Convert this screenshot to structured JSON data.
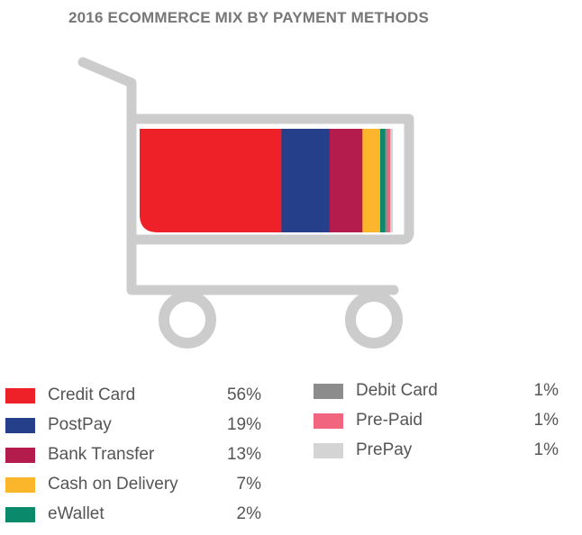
{
  "chart_data": {
    "type": "bar",
    "title": "2016 ECOMMERCE MIX BY PAYMENT METHODS",
    "categories": [
      "Credit Card",
      "PostPay",
      "Bank Transfer",
      "Cash on Delivery",
      "eWallet",
      "Debit Card",
      "Pre-Paid",
      "PrePay"
    ],
    "values": [
      56,
      19,
      13,
      7,
      2,
      1,
      1,
      1
    ],
    "value_labels": [
      "56%",
      "19%",
      "13%",
      "7%",
      "2%",
      "1%",
      "1%",
      "1%"
    ],
    "colors": [
      "#ee2028",
      "#253f8a",
      "#b31c4c",
      "#fbb62c",
      "#0b8a6b",
      "#8c8c8c",
      "#f2657f",
      "#d4d4d4"
    ],
    "stacked": true,
    "legend_position": "bottom"
  }
}
